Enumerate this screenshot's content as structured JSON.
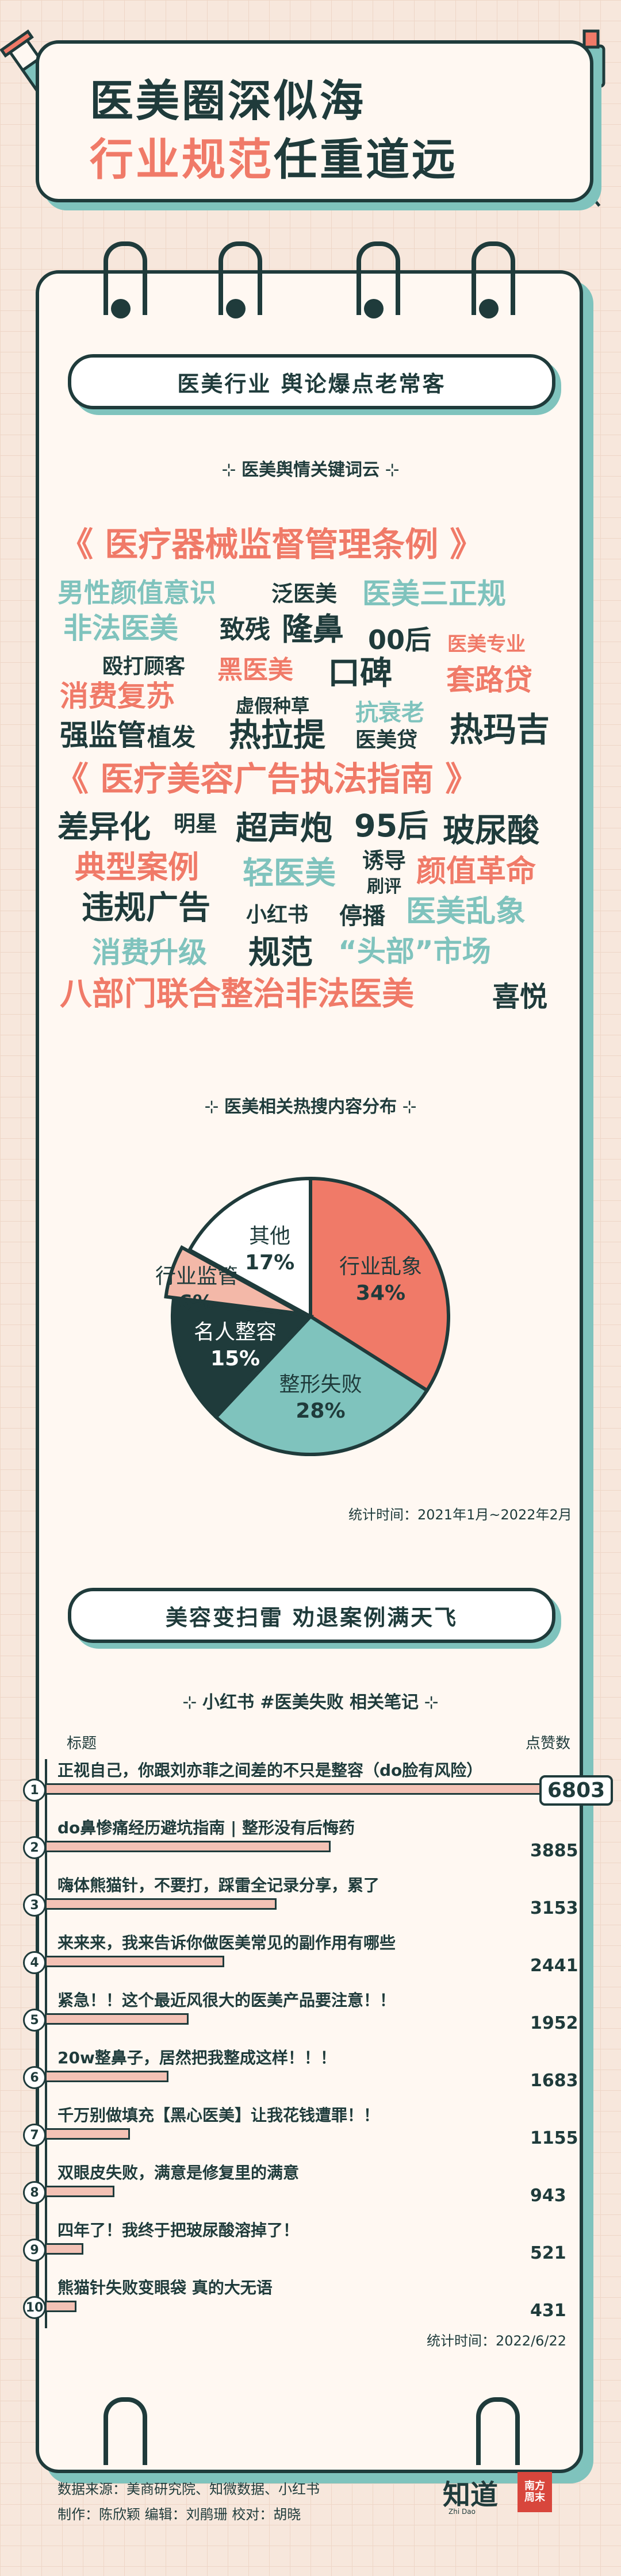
{
  "header": {
    "line1": "医美圈深似海",
    "line2_red": "行业规范",
    "line2_dark": "任重道远"
  },
  "section1": {
    "title": "医美行业 舆论爆点老常客"
  },
  "wordcloud": {
    "heading": "医美舆情关键词云",
    "words": [
      {
        "text": "《 医疗器械监督管理条例 》",
        "color": "red"
      },
      {
        "text": "男性颜值意识",
        "color": "teal"
      },
      {
        "text": "泛医美",
        "color": "dark"
      },
      {
        "text": "医美三正规",
        "color": "teal"
      },
      {
        "text": "非法医美",
        "color": "teal"
      },
      {
        "text": "致残",
        "color": "dark"
      },
      {
        "text": "隆鼻",
        "color": "dark"
      },
      {
        "text": "00后",
        "color": "dark"
      },
      {
        "text": "医美专业",
        "color": "red"
      },
      {
        "text": "殴打顾客",
        "color": "dark"
      },
      {
        "text": "黑医美",
        "color": "red"
      },
      {
        "text": "口碑",
        "color": "dark"
      },
      {
        "text": "套路贷",
        "color": "red"
      },
      {
        "text": "消费复苏",
        "color": "red"
      },
      {
        "text": "虚假种草",
        "color": "dark"
      },
      {
        "text": "抗衰老",
        "color": "teal"
      },
      {
        "text": "强监管",
        "color": "dark"
      },
      {
        "text": "植发",
        "color": "dark"
      },
      {
        "text": "热拉提",
        "color": "dark"
      },
      {
        "text": "医美贷",
        "color": "dark"
      },
      {
        "text": "热玛吉",
        "color": "dark"
      },
      {
        "text": "《 医疗美容广告执法指南 》",
        "color": "red"
      },
      {
        "text": "差异化",
        "color": "dark"
      },
      {
        "text": "明星",
        "color": "dark"
      },
      {
        "text": "超声炮",
        "color": "dark"
      },
      {
        "text": "95后",
        "color": "dark"
      },
      {
        "text": "玻尿酸",
        "color": "dark"
      },
      {
        "text": "典型案例",
        "color": "red"
      },
      {
        "text": "轻医美",
        "color": "teal"
      },
      {
        "text": "诱导",
        "color": "dark"
      },
      {
        "text": "刷评",
        "color": "dark"
      },
      {
        "text": "颜值革命",
        "color": "red"
      },
      {
        "text": "违规广告",
        "color": "dark"
      },
      {
        "text": "小红书",
        "color": "dark"
      },
      {
        "text": "停播",
        "color": "dark"
      },
      {
        "text": "医美乱象",
        "color": "teal"
      },
      {
        "text": "消费升级",
        "color": "teal"
      },
      {
        "text": "规范",
        "color": "dark"
      },
      {
        "text": "“头部”市场",
        "color": "teal"
      },
      {
        "text": "八部门联合整治非法医美",
        "color": "red"
      },
      {
        "text": "喜悦",
        "color": "dark"
      }
    ]
  },
  "colors": {
    "red": "#f07a68",
    "teal": "#7fc3bd",
    "dark": "#1f3b3b",
    "pink": "#f3b8a8",
    "white": "#ffffff",
    "background": "#f7e7dc",
    "paper": "#fff8f2"
  },
  "pie": {
    "heading": "医美相关热搜内容分布",
    "stat_time": "统计时间：2021年1月~2022年2月"
  },
  "section2": {
    "title": "美容变扫雷 劝退案例满天飞"
  },
  "barlist": {
    "heading": "小红书 #医美失败 相关笔记",
    "col_title": "标题",
    "col_likes": "点赞数",
    "stat_time": "统计时间：2022/6/22"
  },
  "footer": {
    "source": "数据来源：美商研究院、知微数据、小红书",
    "credits": "制作：陈欣颖    编辑：刘鹃珊    校对：胡晓",
    "logo_text": "知道",
    "logo_sub": "Zhi Dao",
    "nf_logo": "南方\n周末"
  },
  "chart_data": [
    {
      "type": "pie",
      "title": "医美相关热搜内容分布",
      "slices": [
        {
          "label": "行业乱象",
          "value": 34,
          "display": "34%",
          "color": "#f07a68"
        },
        {
          "label": "整形失败",
          "value": 28,
          "display": "28%",
          "color": "#7fc3bd"
        },
        {
          "label": "名人整容",
          "value": 15,
          "display": "15%",
          "color": "#1f3b3b"
        },
        {
          "label": "行业监管",
          "value": 6,
          "display": "6%",
          "color": "#f3b8a8"
        },
        {
          "label": "其他",
          "value": 17,
          "display": "17%",
          "color": "#ffffff"
        }
      ]
    },
    {
      "type": "bar",
      "title": "小红书 #医美失败 相关笔记",
      "categories": [
        "正视自己，你跟刘亦菲之间差的不只是整容（do脸有风险）",
        "do鼻惨痛经历避坑指南 | 整形没有后悔药",
        "嗨体熊猫针，不要打，踩雷全记录分享，累了",
        "来来来，我来告诉你做医美常见的副作用有哪些",
        "紧急！！这个最近风很大的医美产品要注意！！",
        "20w整鼻子，居然把我整成这样！！！",
        "千万别做填充【黑心医美】让我花钱遭罪！！",
        "双眼皮失败，满意是修复里的满意",
        "四年了！我终于把玻尿酸溶掉了！",
        "熊猫针失败变眼袋 真的大无语"
      ],
      "values": [
        6803,
        3885,
        3153,
        2441,
        1952,
        1683,
        1155,
        943,
        521,
        431
      ],
      "xlabel": "标题",
      "ylabel": "点赞数"
    }
  ]
}
